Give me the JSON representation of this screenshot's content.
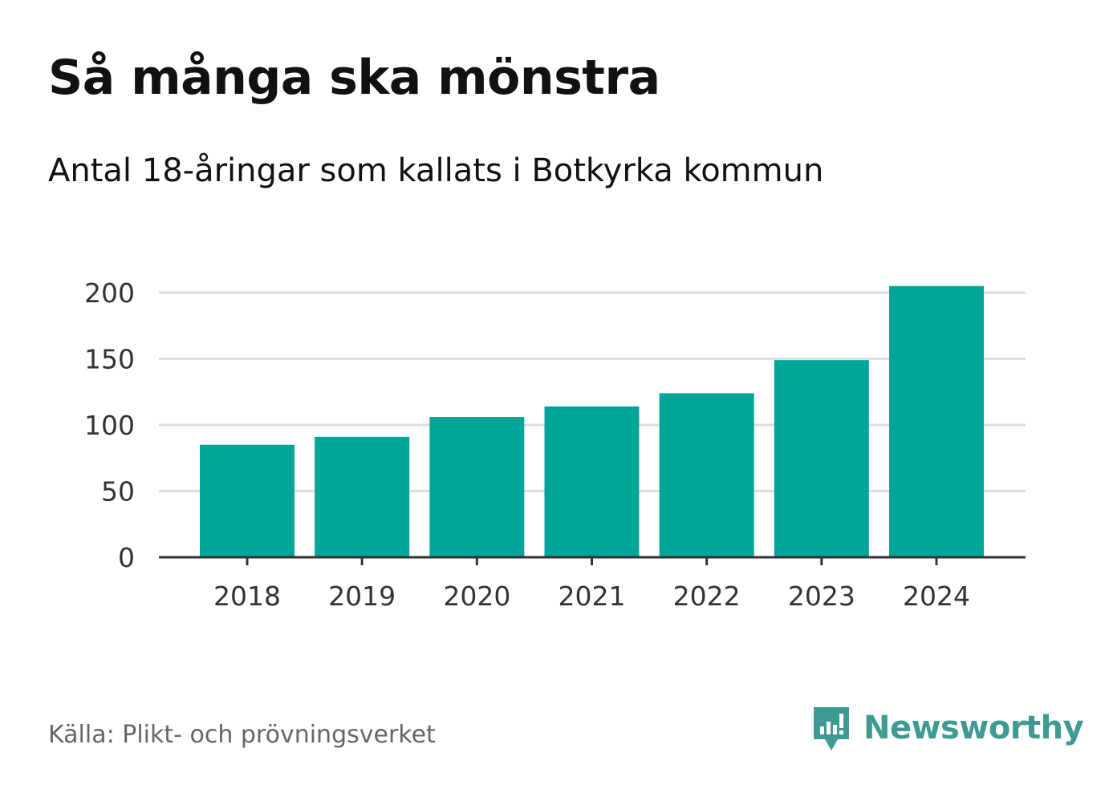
{
  "brand": {
    "name": "Newsworthy",
    "color": "#3e9a92",
    "icon": "speech-bubble-chart-icon"
  },
  "source": "Källa: Plikt- och prövningsverket",
  "chart_data": {
    "type": "bar",
    "title": "Så många ska mönstra",
    "subtitle": "Antal 18-åringar som kallats i Botkyrka kommun",
    "categories": [
      "2018",
      "2019",
      "2020",
      "2021",
      "2022",
      "2023",
      "2024"
    ],
    "values": [
      85,
      91,
      106,
      114,
      124,
      149,
      205
    ],
    "ylim": [
      0,
      200
    ],
    "yticks": [
      0,
      50,
      100,
      150,
      200
    ],
    "xlabel": "",
    "ylabel": "",
    "grid": true,
    "bar_color": "#00a599"
  }
}
